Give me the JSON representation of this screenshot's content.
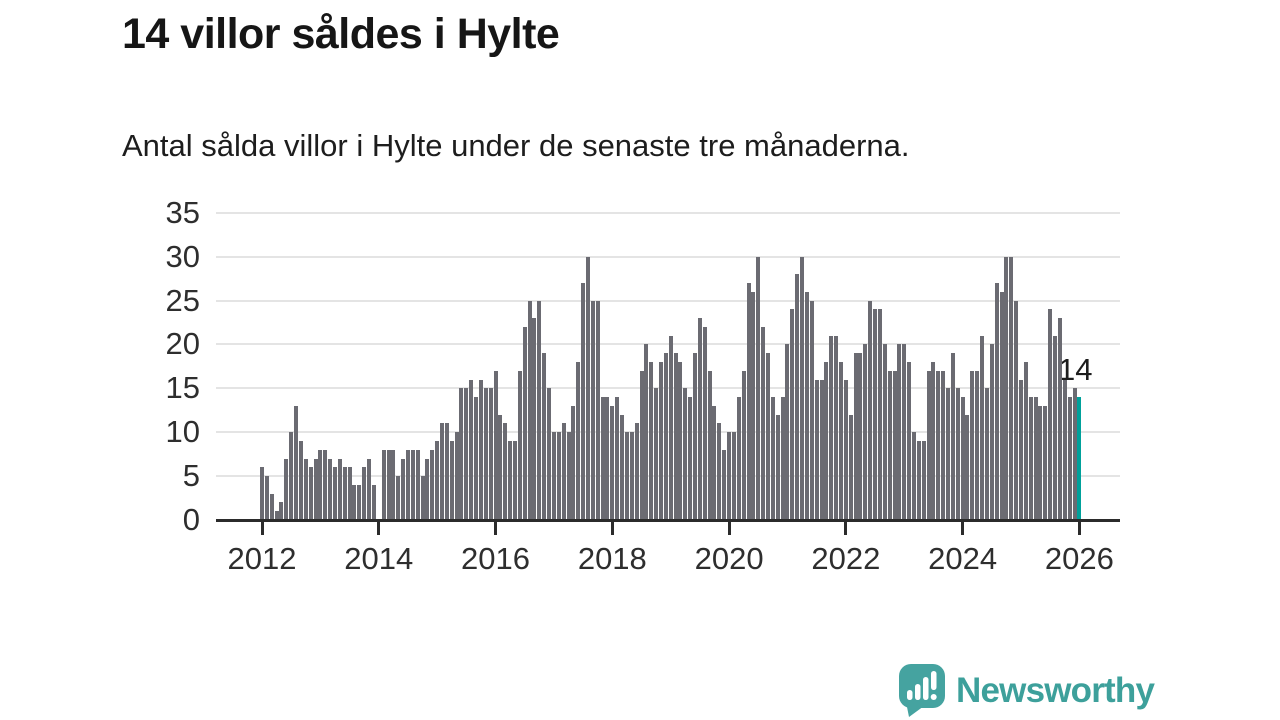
{
  "title": "14 villor såldes i Hylte",
  "subtitle": "Antal sålda villor i Hylte under de senaste tre månaderna.",
  "annotation": {
    "label": "14"
  },
  "branding": {
    "name": "Newsworthy",
    "icon": "newsworthy-speech-bubble-chart-icon"
  },
  "colors": {
    "bar": "#6b6b72",
    "highlight": "#00a19b",
    "axis": "#2b2b2b",
    "grid": "#e4e4e4",
    "text": "#2e2e2e",
    "brand_teal": "#3da09b"
  },
  "chart_data": {
    "type": "bar",
    "title": "14 villor såldes i Hylte",
    "subtitle": "Antal sålda villor i Hylte under de senaste tre månaderna.",
    "xlabel": "",
    "ylabel": "",
    "x_start": "2012-01",
    "x_end": "2026-01",
    "x_frequency": "monthly",
    "x_tick_labels": [
      "2012",
      "2014",
      "2016",
      "2018",
      "2020",
      "2022",
      "2024",
      "2026"
    ],
    "y_ticks": [
      0,
      5,
      10,
      15,
      20,
      25,
      30,
      35
    ],
    "ylim": [
      0,
      35
    ],
    "grid": true,
    "legend": false,
    "values": [
      6,
      5,
      3,
      1,
      2,
      7,
      10,
      13,
      9,
      7,
      6,
      7,
      8,
      8,
      7,
      6,
      7,
      6,
      6,
      4,
      4,
      6,
      7,
      4,
      0,
      8,
      8,
      8,
      5,
      7,
      8,
      8,
      8,
      5,
      7,
      8,
      9,
      11,
      11,
      9,
      10,
      15,
      15,
      16,
      14,
      16,
      15,
      15,
      17,
      12,
      11,
      9,
      9,
      17,
      22,
      25,
      23,
      25,
      19,
      15,
      10,
      10,
      11,
      10,
      13,
      18,
      27,
      30,
      25,
      25,
      14,
      14,
      13,
      14,
      12,
      10,
      10,
      11,
      17,
      20,
      18,
      15,
      18,
      19,
      21,
      19,
      18,
      15,
      14,
      19,
      23,
      22,
      17,
      13,
      11,
      8,
      10,
      10,
      14,
      17,
      27,
      26,
      30,
      22,
      19,
      14,
      12,
      14,
      20,
      24,
      28,
      30,
      26,
      25,
      16,
      16,
      18,
      21,
      21,
      18,
      16,
      12,
      19,
      19,
      20,
      25,
      24,
      24,
      20,
      17,
      17,
      20,
      20,
      18,
      10,
      9,
      9,
      17,
      18,
      17,
      17,
      15,
      19,
      15,
      14,
      12,
      17,
      17,
      21,
      15,
      20,
      27,
      26,
      30,
      30,
      25,
      16,
      18,
      14,
      14,
      13,
      13,
      24,
      21,
      23,
      16,
      14,
      15,
      14
    ],
    "highlight_index": 168,
    "highlight_value": 14,
    "annotation_label": "14"
  }
}
